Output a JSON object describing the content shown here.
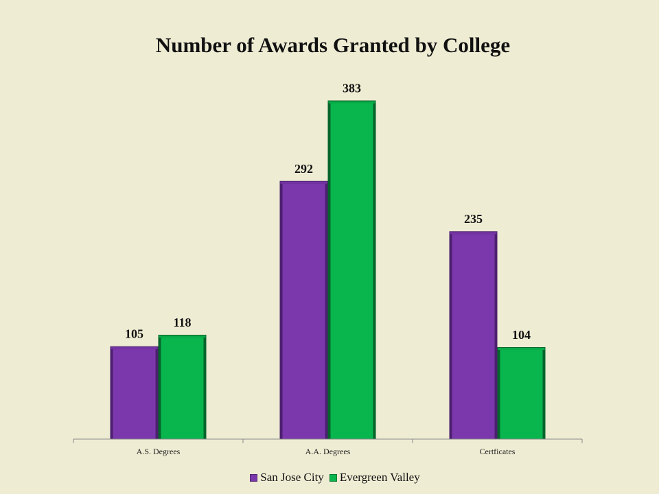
{
  "chart_data": {
    "type": "bar",
    "title": "Number of Awards Granted by College",
    "categories": [
      "A.S. Degrees",
      "A.A. Degrees",
      "Certficates"
    ],
    "series": [
      {
        "name": "San Jose City",
        "values": [
          105,
          292,
          235
        ],
        "color": "#7b38ac",
        "edge": "#4d1f70"
      },
      {
        "name": "Evergreen Valley",
        "values": [
          118,
          383,
          104
        ],
        "color": "#09b64e",
        "edge": "#06652b"
      }
    ],
    "xlabel": "",
    "ylabel": "",
    "ylim": [
      0,
      400
    ],
    "grid": false,
    "legend": "bottom",
    "data_labels": true
  }
}
